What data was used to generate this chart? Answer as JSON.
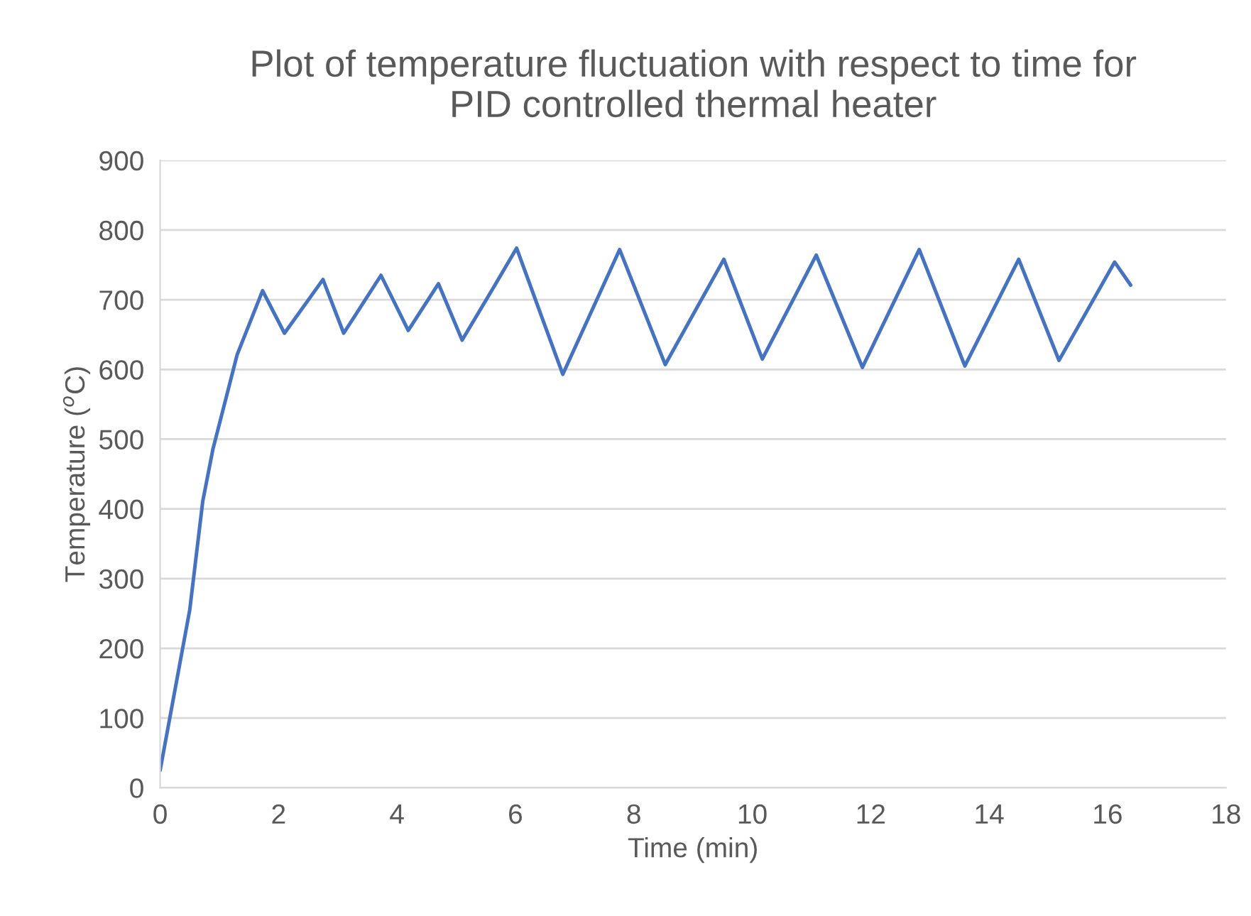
{
  "chart_data": {
    "type": "line",
    "title": "Plot of temperature fluctuation with respect to time for\nPID controlled thermal heater",
    "xlabel": "Time (min)",
    "ylabel": "Temperature ($^{o}$C)",
    "x": [
      0,
      0.5,
      0.72,
      0.89,
      1.3,
      1.73,
      2.1,
      2.75,
      3.1,
      3.73,
      4.19,
      4.7,
      5.1,
      5.64,
      6.02,
      6.8,
      7.76,
      8.53,
      9.52,
      10.17,
      11.08,
      11.86,
      12.82,
      13.59,
      14.5,
      15.18,
      16.12,
      16.39
    ],
    "series": [
      {
        "color": "#4472c4",
        "values": [
          25,
          255,
          411,
          485,
          621,
          713,
          652,
          729,
          652,
          735,
          656,
          723,
          642,
          719,
          774,
          593,
          772,
          607,
          758,
          615,
          764,
          603,
          772,
          605,
          758,
          613,
          754,
          721
        ]
      }
    ],
    "xlim": [
      0,
      18
    ],
    "xticks": [
      0,
      2,
      4,
      6,
      8,
      10,
      12,
      14,
      16,
      18
    ],
    "ylim": [
      0,
      900
    ],
    "yticks": [
      0,
      100,
      200,
      300,
      400,
      500,
      600,
      700,
      800,
      900
    ],
    "grid": "y",
    "marker": "none",
    "line_style": "solid"
  }
}
